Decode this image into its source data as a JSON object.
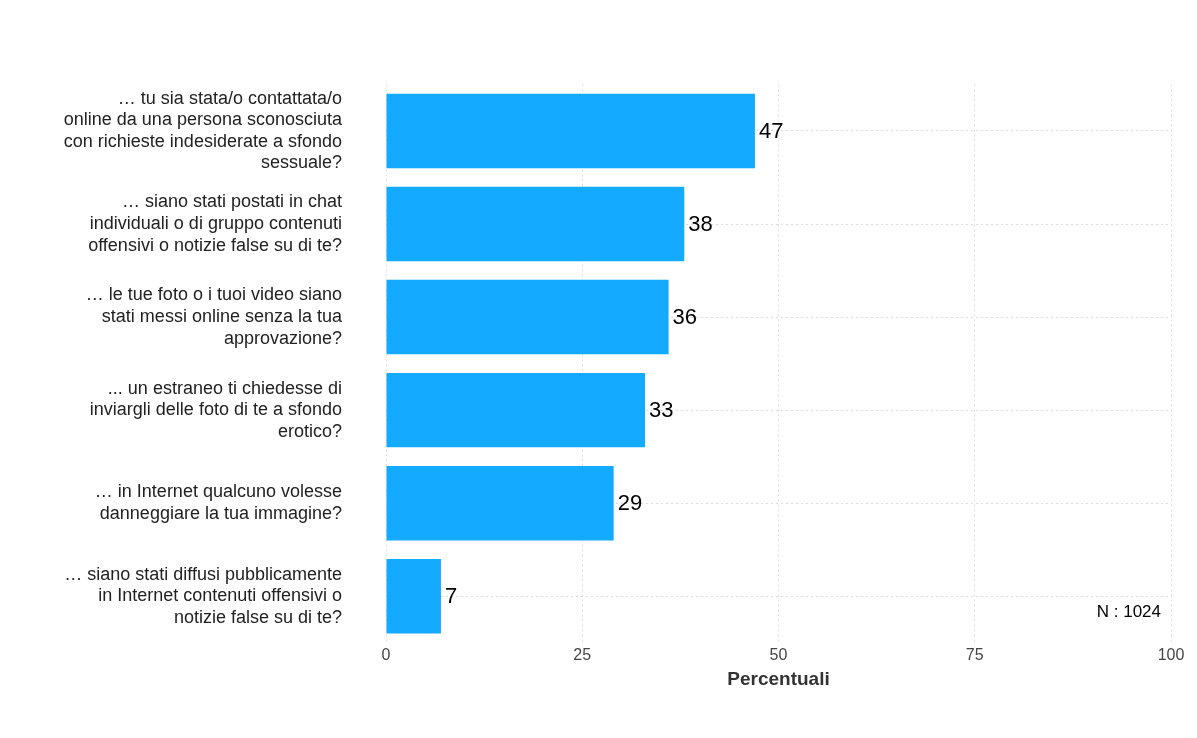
{
  "chart_data": {
    "type": "bar",
    "orientation": "horizontal",
    "xlabel": "Percentuali",
    "categories": [
      "… tu sia stata/o contattata/o online da una persona sconosciuta con richieste indesiderate a sfondo sessuale?",
      "… siano stati postati in chat individuali o di gruppo contenuti offensivi o notizie false su di te?",
      "… le tue foto o i tuoi video siano stati messi online senza la tua approvazione?",
      "... un estraneo ti chiedesse di inviargli delle foto di te a sfondo erotico?",
      "… in Internet qualcuno volesse danneggiare la tua immagine?",
      "… siano stati diffusi pubblicamente in Internet contenuti offensivi o notizie false su di te?"
    ],
    "values": [
      47,
      38,
      36,
      33,
      29,
      7
    ],
    "color": "#13aaff",
    "data_labels": true,
    "xlim": [
      0,
      100
    ],
    "xticks": [
      0,
      25,
      50,
      75,
      100
    ],
    "grid": true,
    "legend": false,
    "annotations": [
      "N : 1024"
    ]
  }
}
